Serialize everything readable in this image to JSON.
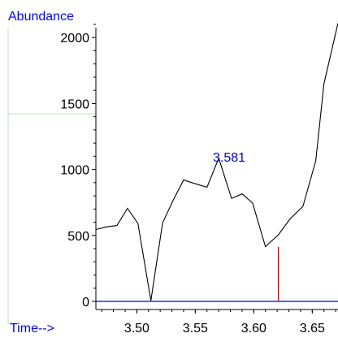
{
  "chart_data": {
    "type": "line",
    "ylabel": "Abundance",
    "xlabel": "Time-->",
    "xlim": [
      3.465,
      3.672
    ],
    "ylim": [
      0,
      2100
    ],
    "x_ticks": [
      3.5,
      3.55,
      3.6,
      3.65
    ],
    "x_tick_labels": [
      "3.50",
      "3.55",
      "3.60",
      "3.65"
    ],
    "y_ticks": [
      0,
      500,
      1000,
      1500,
      2000
    ],
    "y_tick_labels": [
      "0",
      "500",
      "1000",
      "1500",
      "2000"
    ],
    "series": [
      {
        "color": "#000000",
        "x": [
          3.465,
          3.474,
          3.483,
          3.492,
          3.501,
          3.512,
          3.522,
          3.531,
          3.54,
          3.549,
          3.56,
          3.57,
          3.581,
          3.59,
          3.599,
          3.61,
          3.621,
          3.631,
          3.642,
          3.653,
          3.66,
          3.672
        ],
        "y": [
          545,
          565,
          575,
          705,
          590,
          5,
          595,
          765,
          920,
          895,
          865,
          1085,
          780,
          815,
          745,
          415,
          505,
          625,
          720,
          1065,
          1650,
          2110
        ]
      }
    ],
    "peak_annotation": {
      "label": "3.581",
      "x": 3.581,
      "color": "#0000cc"
    },
    "marker_line": {
      "x": 3.621,
      "y": 415,
      "color": "#cc0000"
    },
    "baseline": {
      "y": 0,
      "color": "#0000cc"
    },
    "grid": false
  }
}
